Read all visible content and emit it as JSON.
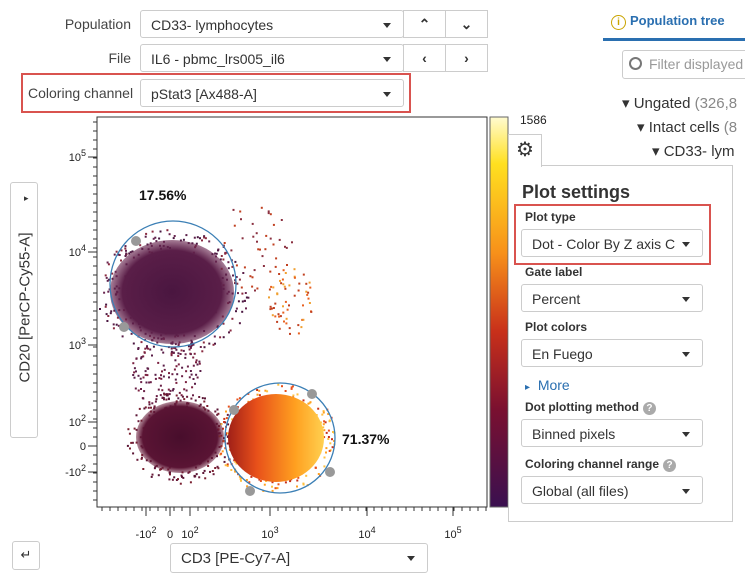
{
  "toolbar": {
    "population": {
      "label": "Population",
      "value": "CD33- lymphocytes"
    },
    "file": {
      "label": "File",
      "value": "IL6 - pbmc_lrs005_il6"
    },
    "coloring_channel": {
      "label": "Coloring channel",
      "value": "pStat3 [Ax488-A]"
    }
  },
  "sidebar": {
    "tab": "Population tree",
    "filter_placeholder": "Filter displayed",
    "tree": [
      {
        "name": "Ungated",
        "count": "(326,8"
      },
      {
        "name": "Intact cells",
        "count": "(8"
      },
      {
        "name": "CD33- lym"
      }
    ]
  },
  "plot": {
    "y_axis_label": "CD20 [PerCP-Cy55-A]",
    "x_axis_label": "CD3 [PE-Cy7-A]",
    "color_scale_max": "1586",
    "gates": [
      {
        "label": "17.56%"
      },
      {
        "label": "71.37%"
      }
    ],
    "x_ticks": [
      {
        "base": "-10",
        "exp": "2"
      },
      {
        "base": "0"
      },
      {
        "base": "10",
        "exp": "2"
      },
      {
        "base": "10",
        "exp": "3"
      },
      {
        "base": "10",
        "exp": "4"
      },
      {
        "base": "10",
        "exp": "5"
      }
    ],
    "y_ticks": [
      {
        "base": "10",
        "exp": "5"
      },
      {
        "base": "10",
        "exp": "4"
      },
      {
        "base": "10",
        "exp": "3"
      },
      {
        "base": "10",
        "exp": "2"
      },
      {
        "base": "0"
      },
      {
        "base": "-10",
        "exp": "2"
      }
    ]
  },
  "plot_settings": {
    "title": "Plot settings",
    "more": "More",
    "fields": [
      {
        "label": "Plot type",
        "value": "Dot - Color By Z axis C"
      },
      {
        "label": "Gate label",
        "value": "Percent"
      },
      {
        "label": "Plot colors",
        "value": "En Fuego"
      },
      {
        "label": "Dot plotting method",
        "value": "Binned pixels"
      },
      {
        "label": "Coloring channel range",
        "value": "Global (all files)"
      }
    ]
  }
}
